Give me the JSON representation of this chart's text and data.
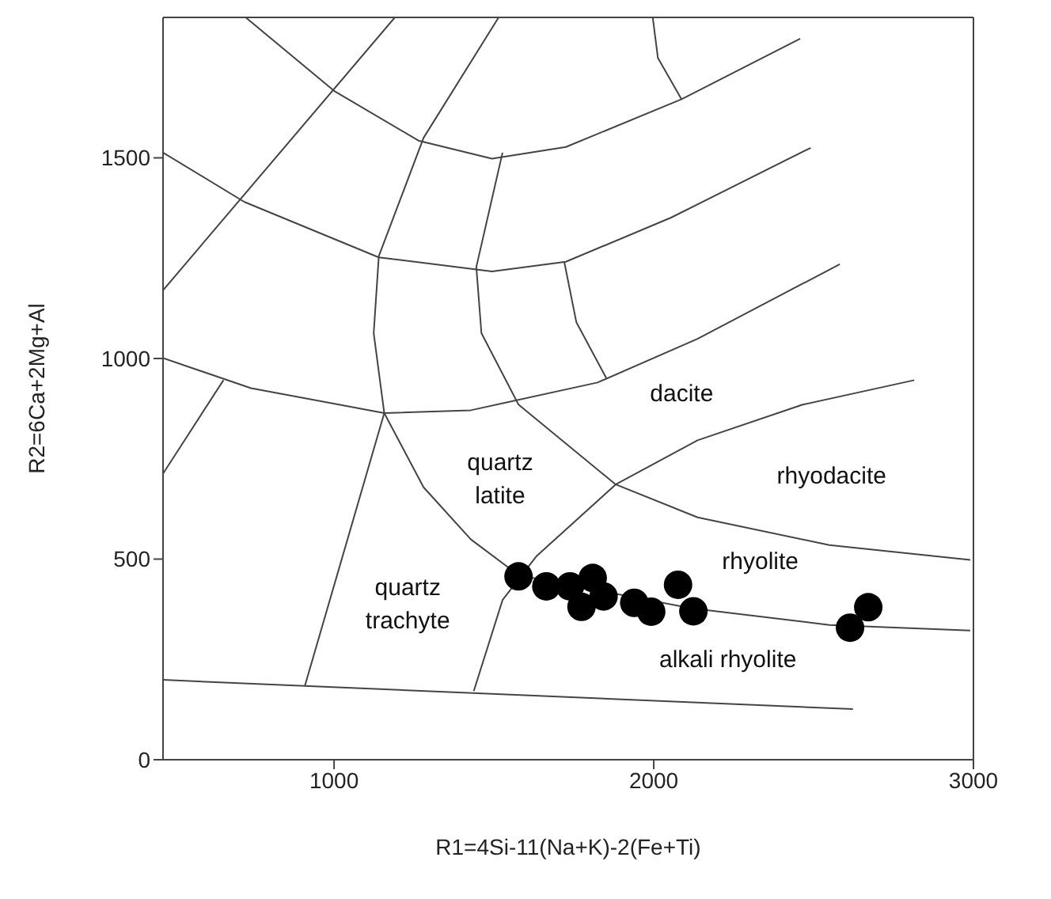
{
  "chart_data": {
    "type": "scatter",
    "xlabel": "R1=4Si-11(Na+K)-2(Fe+Ti)",
    "ylabel": "R2=6Ca+2Mg+Al",
    "xlim": [
      465,
      3000
    ],
    "ylim": [
      0,
      1850
    ],
    "xticks": [
      1000,
      2000,
      3000
    ],
    "yticks": [
      0,
      500,
      1000,
      1500
    ],
    "grid": false,
    "marker": "circle",
    "series": [
      {
        "type": "line",
        "marker": "none",
        "color": "#444444",
        "x": [
          725,
          1000,
          1264,
          1494,
          1725,
          2087,
          2458
        ],
        "values": [
          1849,
          1667,
          1543,
          1498,
          1527,
          1646,
          1797
        ]
      },
      {
        "type": "line",
        "marker": "none",
        "color": "#444444",
        "x": [
          1997,
          2013,
          2087
        ],
        "values": [
          1849,
          1749,
          1646
        ]
      },
      {
        "type": "line",
        "marker": "none",
        "color": "#444444",
        "x": [
          1189,
          465
        ],
        "values": [
          1849,
          1170
        ]
      },
      {
        "type": "line",
        "marker": "none",
        "color": "#444444",
        "x": [
          465,
          720,
          1140,
          1494,
          1725,
          2054,
          2491
        ],
        "values": [
          1513,
          1390,
          1252,
          1217,
          1241,
          1351,
          1525
        ]
      },
      {
        "type": "line",
        "marker": "none",
        "color": "#444444",
        "x": [
          1514,
          1280,
          1140,
          1124,
          1157,
          1280,
          1428,
          1577
        ],
        "values": [
          1849,
          1550,
          1255,
          1063,
          864,
          679,
          549,
          460
        ]
      },
      {
        "type": "line",
        "marker": "none",
        "color": "#444444",
        "x": [
          1527,
          1445,
          1461,
          1577,
          1881,
          2137,
          2549,
          2990
        ],
        "values": [
          1513,
          1228,
          1063,
          885,
          686,
          604,
          535,
          498
        ]
      },
      {
        "type": "line",
        "marker": "none",
        "color": "#444444",
        "x": [
          1720,
          1758,
          1853
        ],
        "values": [
          1241,
          1090,
          949
        ]
      },
      {
        "type": "line",
        "marker": "none",
        "color": "#444444",
        "x": [
          465,
          740,
          1157,
          1428,
          1824,
          2137,
          2582
        ],
        "values": [
          1001,
          926,
          864,
          871,
          940,
          1049,
          1235
        ]
      },
      {
        "type": "line",
        "marker": "none",
        "color": "#444444",
        "x": [
          654,
          465
        ],
        "values": [
          946,
          713
        ]
      },
      {
        "type": "line",
        "marker": "none",
        "color": "#444444",
        "x": [
          1157,
          909
        ],
        "values": [
          864,
          185
        ]
      },
      {
        "type": "line",
        "marker": "none",
        "color": "#444444",
        "x": [
          2815,
          2466,
          2137,
          1881,
          1634,
          1527,
          1437
        ],
        "values": [
          946,
          885,
          796,
          686,
          508,
          398,
          171
        ]
      },
      {
        "type": "line",
        "marker": "none",
        "color": "#444444",
        "x": [
          1577,
          2120,
          2549,
          2990
        ],
        "values": [
          460,
          377,
          336,
          322
        ]
      },
      {
        "type": "line",
        "marker": "none",
        "color": "#444444",
        "x": [
          465,
          2623
        ],
        "values": [
          199,
          126
        ]
      },
      {
        "color": "#000000",
        "x": [
          1577,
          1664,
          1738,
          1809,
          1774,
          1843,
          1939,
          1992,
          2076,
          2124,
          2614,
          2671
        ],
        "values": [
          457,
          432,
          432,
          453,
          381,
          407,
          391,
          369,
          436,
          370,
          329,
          380
        ]
      }
    ],
    "annotations": [
      "dacite",
      "quartz\nlatite",
      "rhyodacite",
      "rhyolite",
      "quartz\ntrachyte",
      "alkali rhyolite"
    ]
  }
}
